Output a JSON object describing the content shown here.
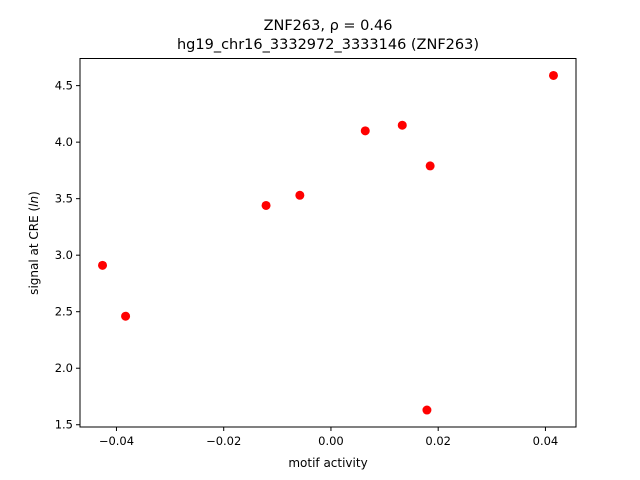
{
  "chart_data": {
    "type": "scatter",
    "title_line1": "ZNF263, ρ = 0.46",
    "title_line2": "hg19_chr16_3332972_3333146 (ZNF263)",
    "xlabel": "motif activity",
    "ylabel": "signal at CRE (ln)",
    "xlim": [
      -0.0468,
      0.0457
    ],
    "ylim": [
      1.48,
      4.74
    ],
    "xticks": [
      -0.04,
      -0.02,
      0.0,
      0.02,
      0.04
    ],
    "xtick_labels": [
      "−0.04",
      "−0.02",
      "0.00",
      "0.02",
      "0.04"
    ],
    "yticks": [
      1.5,
      2.0,
      2.5,
      3.0,
      3.5,
      4.0,
      4.5
    ],
    "ytick_labels": [
      "1.5",
      "2.0",
      "2.5",
      "3.0",
      "3.5",
      "4.0",
      "4.5"
    ],
    "grid": false,
    "point_color": "#ff0000",
    "points": [
      {
        "x": -0.0426,
        "y": 2.91
      },
      {
        "x": -0.0383,
        "y": 2.46
      },
      {
        "x": -0.0121,
        "y": 3.44
      },
      {
        "x": -0.0058,
        "y": 3.53
      },
      {
        "x": 0.0064,
        "y": 4.1
      },
      {
        "x": 0.0133,
        "y": 4.15
      },
      {
        "x": 0.0185,
        "y": 3.79
      },
      {
        "x": 0.0179,
        "y": 1.63
      },
      {
        "x": 0.0415,
        "y": 4.59
      }
    ]
  }
}
